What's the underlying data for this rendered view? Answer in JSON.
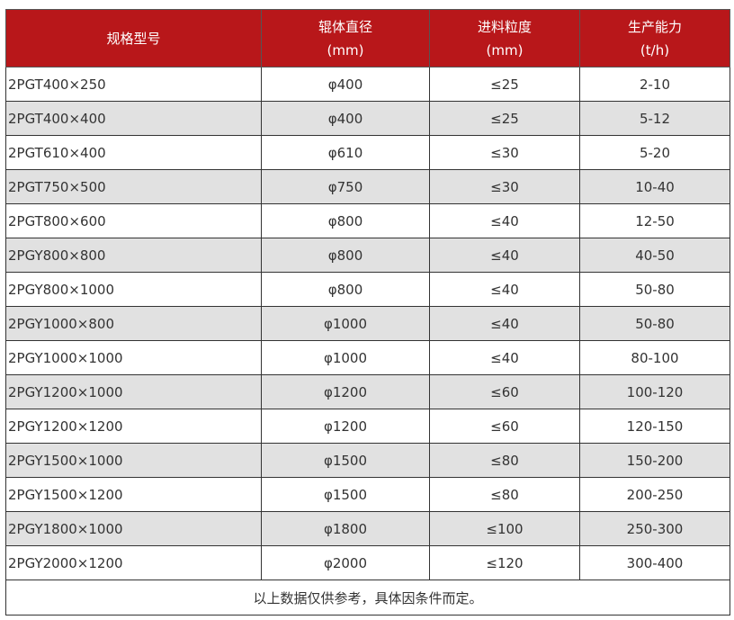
{
  "colors": {
    "header_bg": "#b8171a",
    "alt_row": "#e1e1e1"
  },
  "headers": [
    {
      "line1": "规格型号",
      "line2": ""
    },
    {
      "line1": "辊体直径",
      "line2": "(mm)"
    },
    {
      "line1": "进料粒度",
      "line2": "(mm)"
    },
    {
      "line1": "生产能力",
      "line2": "(t/h)"
    }
  ],
  "rows": [
    [
      "2PGT400×250",
      "φ400",
      "≤25",
      "2-10"
    ],
    [
      "2PGT400×400",
      "φ400",
      "≤25",
      "5-12"
    ],
    [
      "2PGT610×400",
      "φ610",
      "≤30",
      "5-20"
    ],
    [
      "2PGT750×500",
      "φ750",
      "≤30",
      "10-40"
    ],
    [
      "2PGT800×600",
      "φ800",
      "≤40",
      "12-50"
    ],
    [
      "2PGY800×800",
      "φ800",
      "≤40",
      "40-50"
    ],
    [
      "2PGY800×1000",
      "φ800",
      "≤40",
      "50-80"
    ],
    [
      "2PGY1000×800",
      "φ1000",
      "≤40",
      "50-80"
    ],
    [
      "2PGY1000×1000",
      "φ1000",
      "≤40",
      "80-100"
    ],
    [
      "2PGY1200×1000",
      "φ1200",
      "≤60",
      "100-120"
    ],
    [
      "2PGY1200×1200",
      "φ1200",
      "≤60",
      "120-150"
    ],
    [
      "2PGY1500×1000",
      "φ1500",
      "≤80",
      "150-200"
    ],
    [
      "2PGY1500×1200",
      "φ1500",
      "≤80",
      "200-250"
    ],
    [
      "2PGY1800×1000",
      "φ1800",
      "≤100",
      "250-300"
    ],
    [
      "2PGY2000×1200",
      "φ2000",
      "≤120",
      "300-400"
    ]
  ],
  "footer": "以上数据仅供参考，具体因条件而定。"
}
